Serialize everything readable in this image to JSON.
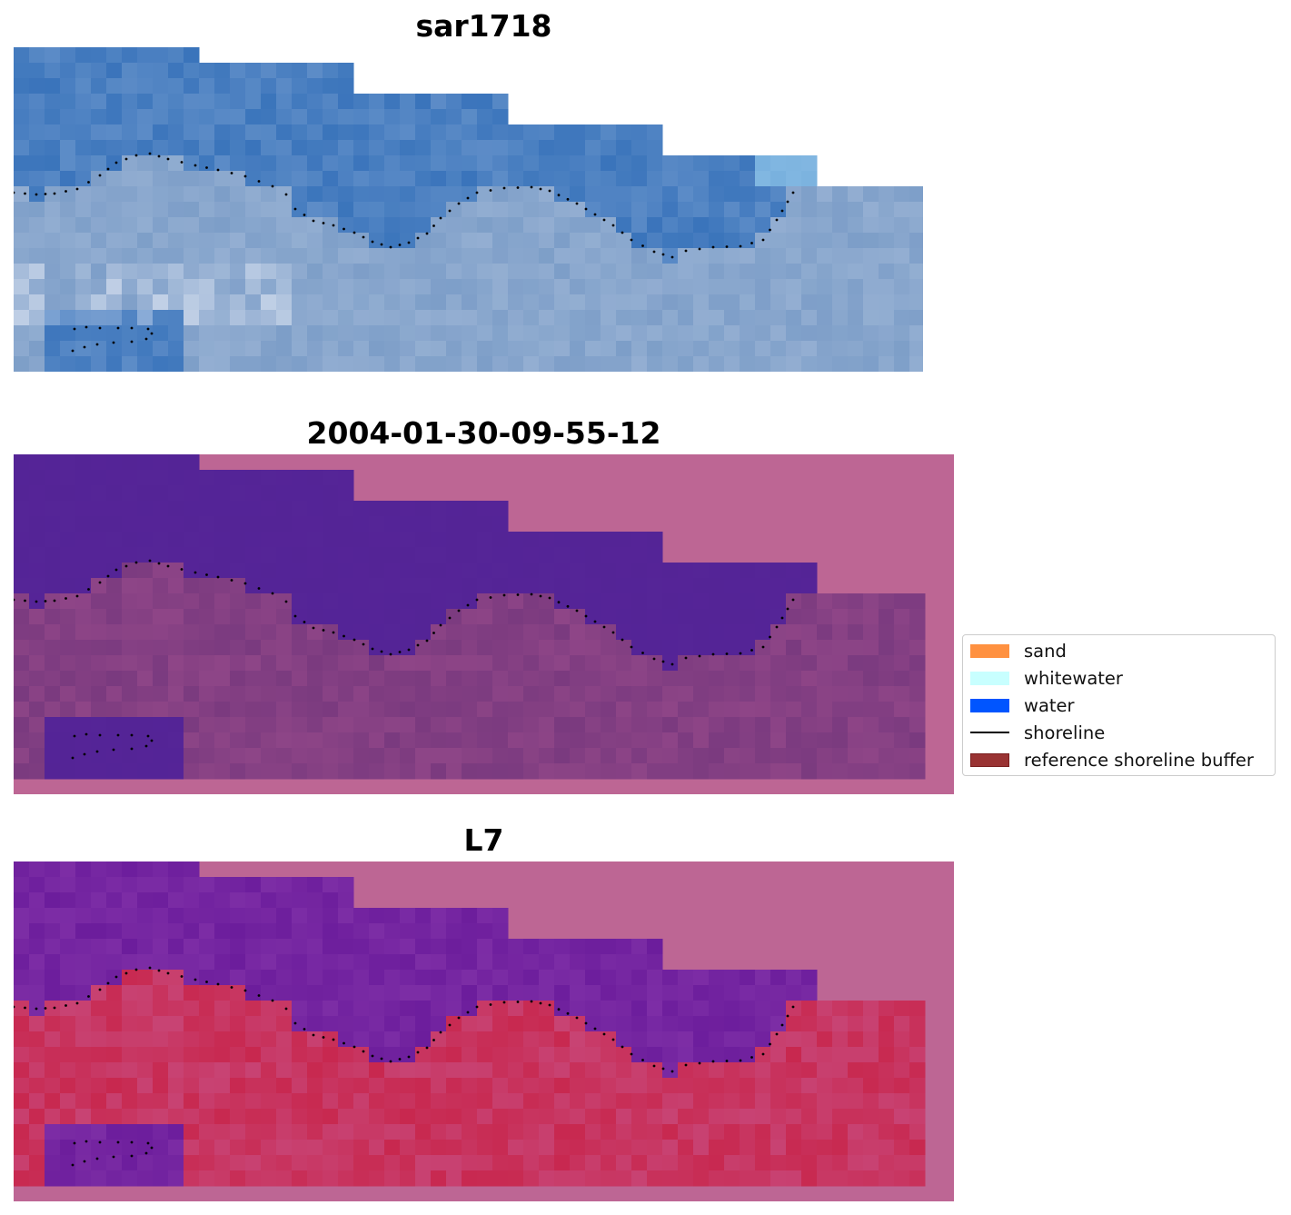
{
  "panels": [
    {
      "title": "sar1718"
    },
    {
      "title": "2004-01-30-09-55-12"
    },
    {
      "title": "L7"
    }
  ],
  "legend": {
    "items": [
      {
        "label": "sand",
        "color": "#ff9140",
        "kind": "patch"
      },
      {
        "label": "whitewater",
        "color": "#c8ffff",
        "kind": "patch"
      },
      {
        "label": "water",
        "color": "#0055ff",
        "kind": "patch"
      },
      {
        "label": "shoreline",
        "color": "#000000",
        "kind": "line"
      },
      {
        "label": "reference shoreline buffer",
        "color": "#993333",
        "kind": "patch"
      }
    ]
  },
  "colors": {
    "rgb_water": "#3a74bb",
    "rgb_land": "#7d9ec8",
    "class_background": "#bd6694",
    "class_water": "#542496",
    "class_land": "#7a3a7f",
    "ndwi_water": "#6c1d9c",
    "ndwi_land": "#c8284f"
  }
}
